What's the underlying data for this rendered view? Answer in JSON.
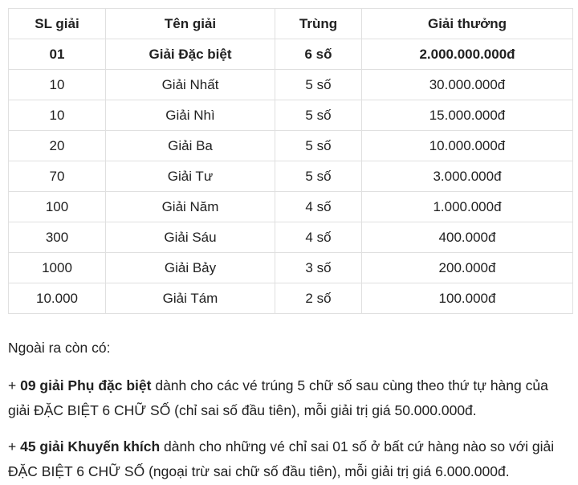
{
  "colors": {
    "text": "#212121",
    "border": "#e0e0e0",
    "background": "#ffffff"
  },
  "table": {
    "headers": [
      "SL giải",
      "Tên giải",
      "Trùng",
      "Giải thưởng"
    ],
    "rows": [
      {
        "bold": true,
        "cells": [
          "01",
          "Giải Đặc biệt",
          "6 số",
          "2.000.000.000đ"
        ]
      },
      {
        "bold": false,
        "cells": [
          "10",
          "Giải Nhất",
          "5 số",
          "30.000.000đ"
        ]
      },
      {
        "bold": false,
        "cells": [
          "10",
          "Giải Nhì",
          "5 số",
          "15.000.000đ"
        ]
      },
      {
        "bold": false,
        "cells": [
          "20",
          "Giải Ba",
          "5 số",
          "10.000.000đ"
        ]
      },
      {
        "bold": false,
        "cells": [
          "70",
          "Giải Tư",
          "5 số",
          "3.000.000đ"
        ]
      },
      {
        "bold": false,
        "cells": [
          "100",
          "Giải Năm",
          "4 số",
          "1.000.000đ"
        ]
      },
      {
        "bold": false,
        "cells": [
          "300",
          "Giải Sáu",
          "4 số",
          "400.000đ"
        ]
      },
      {
        "bold": false,
        "cells": [
          "1000",
          "Giải Bảy",
          "3 số",
          "200.000đ"
        ]
      },
      {
        "bold": false,
        "cells": [
          "10.000",
          "Giải Tám",
          "2 số",
          "100.000đ"
        ]
      }
    ]
  },
  "notes": {
    "intro": "Ngoài ra còn có:",
    "items": [
      {
        "plus": "+ ",
        "bold": "09 giải Phụ đặc biệt",
        "rest": " dành cho các vé trúng 5 chữ số sau cùng theo thứ tự hàng của giải ĐẶC BIỆT 6 CHỮ SỐ (chỉ sai số đầu tiên), mỗi giải trị giá 50.000.000đ."
      },
      {
        "plus": "+ ",
        "bold": "45 giải Khuyến khích",
        "rest": " dành cho những vé chỉ sai 01 số ở bất cứ hàng nào so với giải ĐẶC BIỆT 6 CHỮ SỐ (ngoại trừ sai chữ số đầu tiên), mỗi giải trị giá 6.000.000đ."
      }
    ]
  }
}
